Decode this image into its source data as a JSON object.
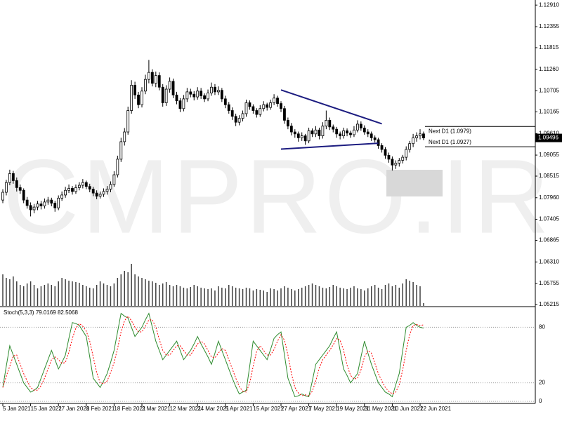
{
  "chart_data": {
    "type": "candlestick",
    "watermark": "CMPRO.IR",
    "ylim": [
      1.0518,
      1.1304
    ],
    "yticks": [
      {
        "value": 1.1291,
        "label": "1.12910"
      },
      {
        "value": 1.12355,
        "label": "1.12355"
      },
      {
        "value": 1.11815,
        "label": "1.11815"
      },
      {
        "value": 1.1126,
        "label": "1.11260"
      },
      {
        "value": 1.10705,
        "label": "1.10705"
      },
      {
        "value": 1.10165,
        "label": "1.10165"
      },
      {
        "value": 1.0961,
        "label": "1.09610"
      },
      {
        "value": 1.09055,
        "label": "1.09055"
      },
      {
        "value": 1.08515,
        "label": "1.08515"
      },
      {
        "value": 1.0796,
        "label": "1.07960"
      },
      {
        "value": 1.07405,
        "label": "1.07405"
      },
      {
        "value": 1.06865,
        "label": "1.06865"
      },
      {
        "value": 1.0631,
        "label": "1.06310"
      },
      {
        "value": 1.05755,
        "label": "1.05755"
      },
      {
        "value": 1.05215,
        "label": "1.05215"
      }
    ],
    "xticks": [
      {
        "value": 0,
        "label": "5 Jan 2021"
      },
      {
        "value": 8,
        "label": "15 Jan 2021"
      },
      {
        "value": 16,
        "label": "27 Jan 2021"
      },
      {
        "value": 24,
        "label": "8 Feb 2021"
      },
      {
        "value": 32,
        "label": "18 Feb 2021"
      },
      {
        "value": 40,
        "label": "2 Mar 2021"
      },
      {
        "value": 48,
        "label": "12 Mar 2021"
      },
      {
        "value": 56,
        "label": "24 Mar 2021"
      },
      {
        "value": 64,
        "label": "5 Apr 2021"
      },
      {
        "value": 72,
        "label": "15 Apr 2021"
      },
      {
        "value": 80,
        "label": "27 Apr 2021"
      },
      {
        "value": 88,
        "label": "7 May 2021"
      },
      {
        "value": 96,
        "label": "19 May 2021"
      },
      {
        "value": 104,
        "label": "31 May 2021"
      },
      {
        "value": 112,
        "label": "10 Jun 2021"
      },
      {
        "value": 120,
        "label": "22 Jun 2021"
      }
    ],
    "bull_color": "#ffffff",
    "bear_color": "#000000",
    "ohlc": [
      [
        1.079,
        1.0818,
        1.0782,
        1.081
      ],
      [
        1.081,
        1.0842,
        1.0802,
        1.0835
      ],
      [
        1.0835,
        1.0868,
        1.0828,
        1.0858
      ],
      [
        1.0858,
        1.0865,
        1.0832,
        1.084
      ],
      [
        1.084,
        1.0848,
        1.0812,
        1.0822
      ],
      [
        1.0822,
        1.083,
        1.0806,
        1.0815
      ],
      [
        1.0815,
        1.082,
        1.0782,
        1.079
      ],
      [
        1.079,
        1.0798,
        1.0768,
        1.0776
      ],
      [
        1.0776,
        1.0784,
        1.0748,
        1.0765
      ],
      [
        1.0765,
        1.078,
        1.0756,
        1.0772
      ],
      [
        1.0772,
        1.0788,
        1.0764,
        1.078
      ],
      [
        1.078,
        1.0788,
        1.0766,
        1.0775
      ],
      [
        1.0775,
        1.0794,
        1.0768,
        1.0785
      ],
      [
        1.0785,
        1.0798,
        1.0778,
        1.079
      ],
      [
        1.079,
        1.0796,
        1.0774,
        1.0782
      ],
      [
        1.0782,
        1.0788,
        1.076,
        1.077
      ],
      [
        1.077,
        1.0802,
        1.0764,
        1.0795
      ],
      [
        1.0795,
        1.0812,
        1.0788,
        1.0803
      ],
      [
        1.0803,
        1.0824,
        1.0796,
        1.0815
      ],
      [
        1.0815,
        1.083,
        1.0808,
        1.082
      ],
      [
        1.082,
        1.0826,
        1.0804,
        1.0812
      ],
      [
        1.0812,
        1.083,
        1.0806,
        1.0822
      ],
      [
        1.0822,
        1.0836,
        1.0815,
        1.0828
      ],
      [
        1.0828,
        1.0844,
        1.082,
        1.0835
      ],
      [
        1.0835,
        1.084,
        1.0818,
        1.0825
      ],
      [
        1.0825,
        1.0832,
        1.081,
        1.0818
      ],
      [
        1.0818,
        1.0824,
        1.08,
        1.0808
      ],
      [
        1.0808,
        1.0815,
        1.0792,
        1.08
      ],
      [
        1.08,
        1.0812,
        1.0794,
        1.0805
      ],
      [
        1.0805,
        1.082,
        1.0798,
        1.0812
      ],
      [
        1.0812,
        1.0826,
        1.0804,
        1.0818
      ],
      [
        1.0818,
        1.0838,
        1.081,
        1.083
      ],
      [
        1.083,
        1.0864,
        1.0824,
        1.0855
      ],
      [
        1.0855,
        1.0904,
        1.0848,
        1.0895
      ],
      [
        1.0895,
        1.095,
        1.0888,
        1.094
      ],
      [
        1.094,
        1.0975,
        1.093,
        1.0965
      ],
      [
        1.0965,
        1.103,
        1.0958,
        1.102
      ],
      [
        1.102,
        1.1098,
        1.1012,
        1.1085
      ],
      [
        1.1085,
        1.1094,
        1.105,
        1.106
      ],
      [
        1.106,
        1.1068,
        1.1026,
        1.1035
      ],
      [
        1.1035,
        1.108,
        1.1028,
        1.107
      ],
      [
        1.107,
        1.1112,
        1.1062,
        1.11
      ],
      [
        1.11,
        1.115,
        1.109,
        1.1118
      ],
      [
        1.1118,
        1.1126,
        1.1082,
        1.109
      ],
      [
        1.109,
        1.112,
        1.108,
        1.111
      ],
      [
        1.111,
        1.1118,
        1.1072,
        1.108
      ],
      [
        1.108,
        1.1088,
        1.103,
        1.104
      ],
      [
        1.104,
        1.1085,
        1.1032,
        1.1075
      ],
      [
        1.1075,
        1.1105,
        1.1066,
        1.1095
      ],
      [
        1.1095,
        1.1102,
        1.1052,
        1.106
      ],
      [
        1.106,
        1.1068,
        1.1036,
        1.1045
      ],
      [
        1.1045,
        1.1052,
        1.1016,
        1.1025
      ],
      [
        1.1025,
        1.106,
        1.1018,
        1.105
      ],
      [
        1.105,
        1.1078,
        1.1042,
        1.1068
      ],
      [
        1.1068,
        1.1076,
        1.1054,
        1.1062
      ],
      [
        1.1062,
        1.107,
        1.1046,
        1.1055
      ],
      [
        1.1055,
        1.108,
        1.1048,
        1.107
      ],
      [
        1.107,
        1.1078,
        1.105,
        1.1058
      ],
      [
        1.1058,
        1.1064,
        1.1042,
        1.105
      ],
      [
        1.105,
        1.1074,
        1.1044,
        1.1065
      ],
      [
        1.1065,
        1.1092,
        1.1058,
        1.108
      ],
      [
        1.108,
        1.1088,
        1.106,
        1.1068
      ],
      [
        1.1068,
        1.1082,
        1.106,
        1.1072
      ],
      [
        1.1072,
        1.1078,
        1.1042,
        1.105
      ],
      [
        1.105,
        1.1058,
        1.1026,
        1.1035
      ],
      [
        1.1035,
        1.1042,
        1.1012,
        1.102
      ],
      [
        1.102,
        1.1028,
        1.0996,
        1.1005
      ],
      [
        1.1005,
        1.1012,
        1.098,
        1.099
      ],
      [
        1.099,
        1.1008,
        1.0982,
        1.1
      ],
      [
        1.1,
        1.102,
        1.0992,
        1.1012
      ],
      [
        1.1012,
        1.1048,
        1.1004,
        1.104
      ],
      [
        1.104,
        1.1046,
        1.1022,
        1.103
      ],
      [
        1.103,
        1.1036,
        1.1012,
        1.102
      ],
      [
        1.102,
        1.1026,
        1.1002,
        1.101
      ],
      [
        1.101,
        1.1034,
        1.1004,
        1.1025
      ],
      [
        1.1025,
        1.1044,
        1.1018,
        1.1035
      ],
      [
        1.1035,
        1.104,
        1.102,
        1.1028
      ],
      [
        1.1028,
        1.1048,
        1.1022,
        1.104
      ],
      [
        1.104,
        1.1062,
        1.1034,
        1.1052
      ],
      [
        1.1052,
        1.1058,
        1.103,
        1.1038
      ],
      [
        1.1038,
        1.1044,
        1.1016,
        1.1025
      ],
      [
        1.1025,
        1.1032,
        1.0986,
        1.0995
      ],
      [
        1.0995,
        1.1002,
        1.0972,
        1.098
      ],
      [
        1.098,
        1.0988,
        1.0956,
        1.0965
      ],
      [
        1.0965,
        1.0972,
        1.095,
        1.096
      ],
      [
        1.096,
        1.0966,
        1.094,
        1.095
      ],
      [
        1.095,
        1.0964,
        1.0942,
        1.0955
      ],
      [
        1.0955,
        1.096,
        1.0932,
        1.0942
      ],
      [
        1.0942,
        1.0976,
        1.0936,
        1.0968
      ],
      [
        1.0968,
        1.0974,
        1.0952,
        1.096
      ],
      [
        1.096,
        1.098,
        1.0952,
        1.097
      ],
      [
        1.097,
        1.0976,
        1.0946,
        1.0955
      ],
      [
        1.0955,
        1.099,
        1.0948,
        1.098
      ],
      [
        1.098,
        1.102,
        1.0972,
        1.0995
      ],
      [
        1.0995,
        1.1002,
        1.097,
        1.0978
      ],
      [
        1.0978,
        1.0984,
        1.0964,
        1.0972
      ],
      [
        1.0972,
        1.0978,
        1.095,
        1.096
      ],
      [
        1.096,
        1.0966,
        1.0946,
        1.0955
      ],
      [
        1.0955,
        1.0976,
        1.0948,
        1.0968
      ],
      [
        1.0968,
        1.0974,
        1.0954,
        1.0962
      ],
      [
        1.0962,
        1.0968,
        1.095,
        1.0958
      ],
      [
        1.0958,
        1.098,
        1.0952,
        1.097
      ],
      [
        1.097,
        1.0995,
        1.0964,
        1.0985
      ],
      [
        1.0985,
        1.0992,
        1.0968,
        1.0975
      ],
      [
        1.0975,
        1.0982,
        1.0958,
        1.0965
      ],
      [
        1.0965,
        1.0972,
        1.0952,
        1.096
      ],
      [
        1.096,
        1.0966,
        1.0942,
        1.095
      ],
      [
        1.095,
        1.0956,
        1.0938,
        1.0945
      ],
      [
        1.0945,
        1.095,
        1.0922,
        1.093
      ],
      [
        1.093,
        1.0936,
        1.0912,
        1.092
      ],
      [
        1.092,
        1.0926,
        1.0896,
        1.0905
      ],
      [
        1.0905,
        1.0912,
        1.0886,
        1.0895
      ],
      [
        1.0895,
        1.0902,
        1.0866,
        1.088
      ],
      [
        1.088,
        1.0892,
        1.087,
        1.0885
      ],
      [
        1.0885,
        1.0898,
        1.0876,
        1.0892
      ],
      [
        1.0892,
        1.0906,
        1.0884,
        1.09
      ],
      [
        1.09,
        1.0928,
        1.0892,
        1.092
      ],
      [
        1.092,
        1.0942,
        1.0912,
        1.0935
      ],
      [
        1.0935,
        1.096,
        1.0926,
        1.095
      ],
      [
        1.095,
        1.0964,
        1.094,
        1.0955
      ],
      [
        1.0955,
        1.0972,
        1.0946,
        1.096
      ],
      [
        1.096,
        1.0966,
        1.0944,
        1.09496
      ]
    ],
    "volume_color": "#000000",
    "volume": [
      45,
      40,
      38,
      42,
      35,
      30,
      28,
      32,
      35,
      30,
      25,
      28,
      30,
      32,
      30,
      28,
      35,
      40,
      38,
      36,
      35,
      34,
      33,
      30,
      28,
      26,
      25,
      30,
      35,
      32,
      30,
      28,
      32,
      40,
      45,
      50,
      48,
      60,
      45,
      42,
      40,
      38,
      36,
      35,
      33,
      30,
      32,
      34,
      30,
      28,
      30,
      28,
      26,
      25,
      27,
      30,
      28,
      26,
      25,
      24,
      25,
      22,
      28,
      26,
      25,
      30,
      28,
      26,
      25,
      24,
      26,
      25,
      22,
      24,
      23,
      22,
      20,
      25,
      24,
      22,
      25,
      28,
      26,
      24,
      22,
      24,
      26,
      28,
      30,
      32,
      30,
      28,
      26,
      25,
      27,
      30,
      28,
      26,
      25,
      24,
      26,
      28,
      25,
      24,
      22,
      25,
      28,
      30,
      26,
      24,
      30,
      32,
      28,
      30,
      26,
      32,
      38,
      36,
      34,
      30,
      28,
      4
    ],
    "current_price": 1.09496,
    "levels": [
      {
        "value": 1.0979,
        "label": "Next D1 (1.0979)"
      },
      {
        "value": 1.0927,
        "label": "Next D1 (1.0927)"
      }
    ],
    "trendlines": [
      {
        "color": "#1c1c80",
        "x": [
          80,
          109
        ],
        "y": [
          1.1073,
          1.0986
        ]
      },
      {
        "color": "#1c1c80",
        "x": [
          80,
          108
        ],
        "y": [
          1.0921,
          1.0936
        ]
      }
    ],
    "stoch": {
      "name": "Stoch(5,3,3)",
      "ylim": [
        0,
        100
      ],
      "yticks": [
        0,
        20,
        80
      ],
      "k": {
        "color": "#2e8b2e",
        "values": [
          15,
          38,
          60,
          50,
          40,
          30,
          20,
          15,
          10,
          12,
          15,
          25,
          35,
          45,
          55,
          45,
          35,
          42,
          50,
          68,
          85,
          84,
          82,
          76,
          70,
          48,
          25,
          20,
          15,
          22,
          30,
          42,
          55,
          75,
          95,
          92,
          90,
          80,
          70,
          75,
          80,
          88,
          95,
          80,
          65,
          55,
          45,
          50,
          55,
          60,
          65,
          55,
          45,
          50,
          55,
          62,
          70,
          62,
          55,
          48,
          40,
          52,
          65,
          55,
          45,
          35,
          25,
          16,
          8,
          10,
          12,
          38,
          65,
          60,
          55,
          50,
          45,
          56,
          68,
          72,
          75,
          50,
          25,
          15,
          5,
          6,
          8,
          6,
          5,
          22,
          40,
          45,
          50,
          55,
          60,
          68,
          75,
          55,
          35,
          28,
          20,
          25,
          30,
          48,
          65,
          52,
          40,
          30,
          20,
          15,
          10,
          8,
          5,
          18,
          30,
          55,
          80,
          82,
          85,
          82,
          80,
          79.0169
        ]
      },
      "d": {
        "color": "#ff0000",
        "values": [
          15,
          27,
          38,
          49,
          50,
          40,
          30,
          22,
          15,
          12,
          12,
          17,
          25,
          35,
          45,
          48,
          45,
          41,
          42,
          53,
          68,
          79,
          84,
          81,
          76,
          65,
          48,
          31,
          20,
          19,
          22,
          31,
          42,
          57,
          75,
          87,
          92,
          87,
          80,
          75,
          75,
          81,
          88,
          88,
          80,
          67,
          55,
          50,
          50,
          55,
          60,
          60,
          55,
          50,
          50,
          56,
          62,
          65,
          62,
          55,
          48,
          47,
          52,
          57,
          55,
          45,
          35,
          25,
          16,
          11,
          10,
          20,
          38,
          54,
          60,
          55,
          50,
          50,
          56,
          65,
          72,
          66,
          50,
          30,
          15,
          9,
          6,
          7,
          6,
          11,
          22,
          36,
          45,
          50,
          55,
          61,
          68,
          66,
          55,
          39,
          28,
          24,
          25,
          34,
          48,
          55,
          52,
          41,
          30,
          22,
          15,
          11,
          8,
          10,
          18,
          34,
          55,
          72,
          82,
          83,
          82,
          82.5068
        ]
      }
    }
  }
}
